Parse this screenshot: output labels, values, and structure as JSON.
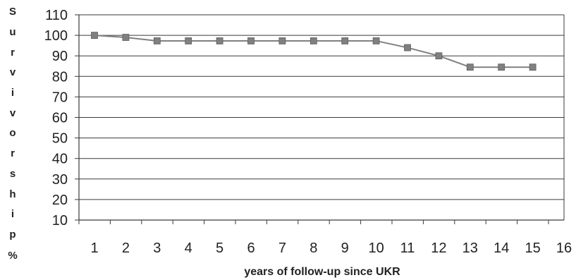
{
  "chart_data": {
    "type": "line",
    "xlabel": "years of follow-up since UKR",
    "ylabel_letters": [
      "S",
      "u",
      "r",
      "v",
      "i",
      "v",
      "o",
      "r",
      "s",
      "h",
      "i",
      "p",
      "%"
    ],
    "ylim": [
      10,
      110
    ],
    "xlim": [
      1,
      16
    ],
    "yticks": [
      10,
      20,
      30,
      40,
      50,
      60,
      70,
      80,
      90,
      100,
      110
    ],
    "xticks": [
      1,
      2,
      3,
      4,
      5,
      6,
      7,
      8,
      9,
      10,
      11,
      12,
      13,
      14,
      15,
      16
    ],
    "grid": true,
    "legend": "none",
    "series": [
      {
        "x": [
          1,
          2,
          3,
          4,
          5,
          6,
          7,
          8,
          9,
          10,
          11,
          12,
          13,
          14,
          15
        ],
        "values": [
          100,
          99,
          97.3,
          97.3,
          97.3,
          97.3,
          97.3,
          97.3,
          97.3,
          97.3,
          94,
          90,
          84.5,
          84.5,
          84.5
        ],
        "color": "#808080",
        "marker": "square"
      }
    ]
  }
}
